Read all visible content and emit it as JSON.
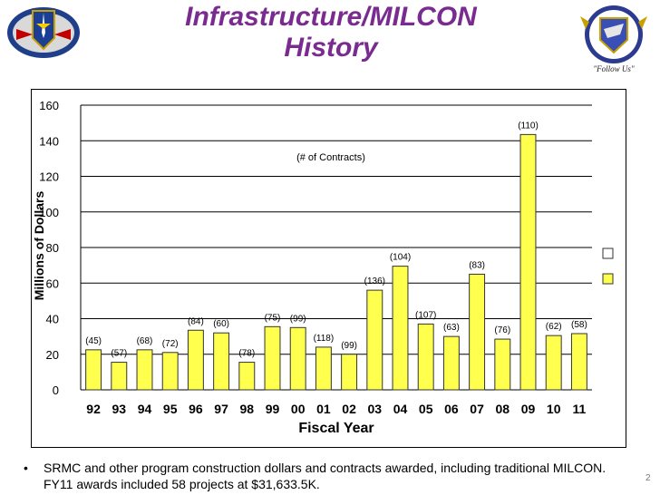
{
  "slide": {
    "title_line1": "Infrastructure/MILCON",
    "title_line2": "History",
    "bullet_text": "SRMC and other program construction dollars and contracts awarded, including traditional MILCON.  FY11 awards included 58 projects at $31,633.5K.",
    "page_number": "2",
    "logo_right_motto": "\"Follow Us\""
  },
  "colors": {
    "title": "#7a2b8f",
    "bar_fill": "#ffff4d",
    "bar_stroke": "#333333",
    "grid": "#000000"
  },
  "chart_data": {
    "type": "bar",
    "title": "",
    "annotation": "(# of Contracts)",
    "xlabel": "Fiscal Year",
    "ylabel": "Millions of Dollars",
    "ylim": [
      0,
      160
    ],
    "yticks": [
      0,
      20,
      40,
      60,
      80,
      100,
      120,
      140,
      160
    ],
    "grid": true,
    "categories": [
      "92",
      "93",
      "94",
      "95",
      "96",
      "97",
      "98",
      "99",
      "00",
      "01",
      "02",
      "03",
      "04",
      "05",
      "06",
      "07",
      "08",
      "09",
      "10",
      "11"
    ],
    "values": [
      22.5,
      15.5,
      22.5,
      21,
      33.5,
      32,
      15.5,
      35.5,
      35,
      24,
      20,
      56,
      69.5,
      37,
      30,
      65,
      28.5,
      143.5,
      30.5,
      31.6
    ],
    "contract_labels": [
      "(45)",
      "(57)",
      "(68)",
      "(72)",
      "(84)",
      "(60)",
      "(78)",
      "(75)",
      "(99)",
      "(118)",
      "(99)",
      "(136)",
      "(104)",
      "(107)",
      "(63)",
      "(83)",
      "(76)",
      "(110)",
      "(62)",
      "(58)"
    ],
    "legend": {
      "placement": "right",
      "entries": [
        "",
        ""
      ]
    }
  }
}
